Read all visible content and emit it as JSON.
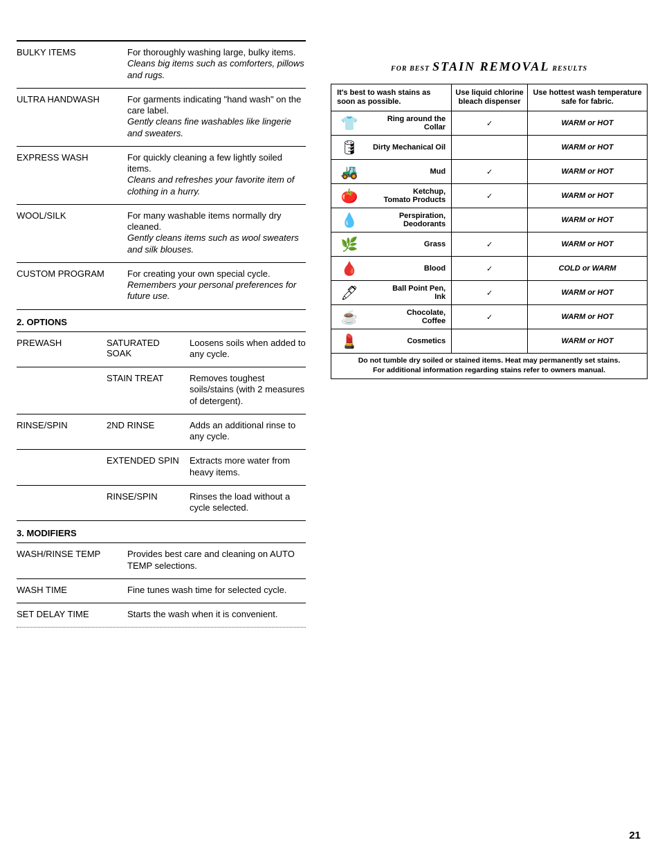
{
  "left": {
    "cycles": [
      {
        "name": "BULKY ITEMS",
        "line1": "For thoroughly washing large, bulky items.",
        "line2": "Cleans big items such as comforters, pillows and rugs."
      },
      {
        "name": "ULTRA HANDWASH",
        "line1": "For garments indicating \"hand wash\" on the care label.",
        "line2": "Gently cleans fine washables like lingerie and sweaters."
      },
      {
        "name": "EXPRESS WASH",
        "line1": "For quickly cleaning a few lightly soiled items.",
        "line2": "Cleans and refreshes your favorite item of clothing in a hurry."
      },
      {
        "name": "WOOL/SILK",
        "line1": "For many washable items normally dry cleaned.",
        "line2": "Gently cleans items such as wool sweaters and silk blouses."
      },
      {
        "name": "CUSTOM PROGRAM",
        "line1": "For creating your own special cycle.",
        "line2": "Remembers your personal preferences for future use."
      }
    ],
    "options_header": "2. OPTIONS",
    "options": [
      {
        "c1": "PREWASH",
        "c2": "SATURATED SOAK",
        "c3": "Loosens soils when added to any cycle."
      },
      {
        "c1": "",
        "c2": "STAIN TREAT",
        "c3": "Removes toughest soils/stains (with 2 measures of detergent)."
      },
      {
        "c1": "RINSE/SPIN",
        "c2": "2ND RINSE",
        "c3": "Adds an additional rinse to any cycle."
      },
      {
        "c1": "",
        "c2": "EXTENDED SPIN",
        "c3": "Extracts more water from heavy items."
      },
      {
        "c1": "",
        "c2": "RINSE/SPIN",
        "c3": "Rinses the load without a cycle selected."
      }
    ],
    "modifiers_header": "3. MODIFIERS",
    "modifiers": [
      {
        "c1": "WASH/RINSE TEMP",
        "c2": "Provides best care and cleaning on AUTO TEMP selections."
      },
      {
        "c1": "WASH TIME",
        "c2": "Fine tunes wash time for selected cycle."
      },
      {
        "c1": "SET DELAY TIME",
        "c2": "Starts the wash when it is convenient."
      }
    ]
  },
  "right": {
    "title_pre": "FOR BEST",
    "title_main": "STAIN REMOVAL",
    "title_post": "RESULTS",
    "head1": "It's best to wash stains as soon as possible.",
    "head2": "Use liquid chlorine bleach dispenser",
    "head3": "Use hottest wash temperature safe for fabric.",
    "rows": [
      {
        "icon": "👕",
        "label": "Ring around the Collar",
        "check": true,
        "temp": "WARM or HOT"
      },
      {
        "icon": "🛢",
        "label": "Dirty Mechanical Oil",
        "check": false,
        "temp": "WARM or HOT"
      },
      {
        "icon": "🚜",
        "label": "Mud",
        "check": true,
        "temp": "WARM or HOT"
      },
      {
        "icon": "🍅",
        "label": "Ketchup, Tomato Products",
        "check": true,
        "temp": "WARM or HOT"
      },
      {
        "icon": "💧",
        "label": "Perspiration, Deodorants",
        "check": false,
        "temp": "WARM or HOT"
      },
      {
        "icon": "🌿",
        "label": "Grass",
        "check": true,
        "temp": "WARM or HOT"
      },
      {
        "icon": "🩸",
        "label": "Blood",
        "check": true,
        "temp": "COLD or WARM"
      },
      {
        "icon": "🖊",
        "label": "Ball Point Pen, Ink",
        "check": true,
        "temp": "WARM or HOT"
      },
      {
        "icon": "☕",
        "label": "Chocolate, Coffee",
        "check": true,
        "temp": "WARM or HOT"
      },
      {
        "icon": "💄",
        "label": "Cosmetics",
        "check": false,
        "temp": "WARM or HOT"
      }
    ],
    "footer1": "Do not tumble dry soiled or stained items. Heat may permanently set stains.",
    "footer2": "For additional information regarding stains refer to owners manual."
  },
  "page_number": "21"
}
